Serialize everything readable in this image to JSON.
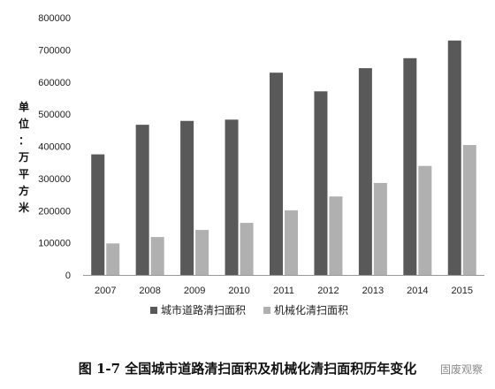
{
  "chart_data": {
    "type": "bar",
    "categories": [
      "2007",
      "2008",
      "2009",
      "2010",
      "2011",
      "2012",
      "2013",
      "2014",
      "2015"
    ],
    "series": [
      {
        "name": "城市道路清扫面积",
        "color": "#595959",
        "values": [
          375000,
          467000,
          479000,
          483000,
          629000,
          571000,
          643000,
          674000,
          729000
        ]
      },
      {
        "name": "机械化清扫面积",
        "color": "#b0b0b0",
        "values": [
          98000,
          118000,
          140000,
          162000,
          201000,
          244000,
          286000,
          339000,
          404000
        ]
      }
    ],
    "ylabel": "单位：万平方米",
    "ylim": [
      0,
      800000
    ],
    "yticks": [
      0,
      100000,
      200000,
      300000,
      400000,
      500000,
      600000,
      700000,
      800000
    ],
    "grid": false,
    "legend_position": "bottom"
  },
  "caption": "图 1-7 全国城市道路清扫面积及机械化清扫面积历年变化",
  "watermark": "固废观察"
}
